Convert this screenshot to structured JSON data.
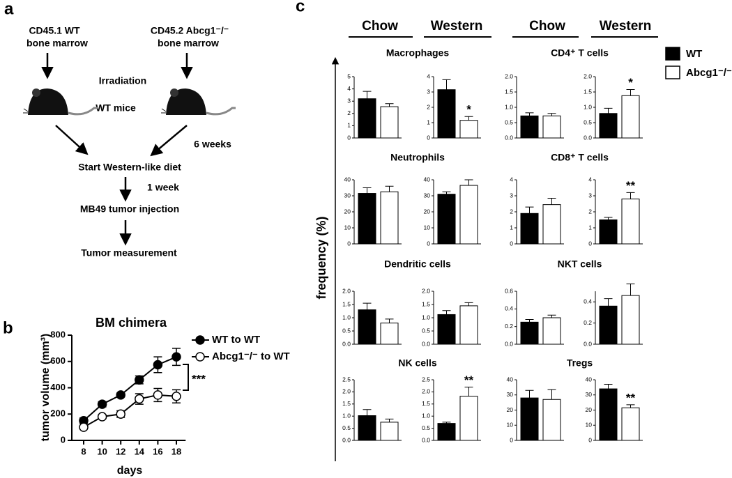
{
  "panel_labels": [
    "a",
    "b",
    "c"
  ],
  "diagram": {
    "sources": [
      [
        "CD45.1 WT",
        "bone marrow"
      ],
      [
        "CD45.2 Abcg1⁻/⁻",
        "bone marrow"
      ]
    ],
    "treatment": "Irradiation",
    "host": "WT mice",
    "delay1": "6 weeks",
    "step1": "Start Western-like diet",
    "delay2": "1 week",
    "step2": "MB49 tumor injection",
    "step3": "Tumor measurement"
  },
  "panel_c": {
    "headers": [
      "Chow",
      "Western",
      "Chow",
      "Western"
    ],
    "ylabel": "frequency (%)",
    "legend": [
      {
        "name": "WT",
        "color": "#000000"
      },
      {
        "name": "Abcg1⁻/⁻",
        "color": "#ffffff"
      }
    ]
  },
  "chart_data": [
    {
      "type": "line",
      "title": "BM chimera",
      "xlabel": "days",
      "ylabel": "tumor volume (mm³)",
      "x": [
        8,
        10,
        12,
        14,
        16,
        18
      ],
      "xlim": [
        7,
        19
      ],
      "xticks": [
        8,
        10,
        12,
        14,
        16,
        18
      ],
      "ylim": [
        0,
        800
      ],
      "yticks": [
        0,
        200,
        400,
        600,
        800
      ],
      "annotation": "***",
      "series": [
        {
          "name": "WT to WT",
          "color": "#000000",
          "values": [
            150,
            275,
            345,
            460,
            575,
            635
          ],
          "errors": [
            20,
            20,
            15,
            30,
            60,
            65
          ]
        },
        {
          "name": "Abcg1⁻/⁻ to WT",
          "color": "#ffffff",
          "values": [
            100,
            180,
            200,
            315,
            345,
            335
          ],
          "errors": [
            10,
            15,
            25,
            40,
            50,
            50
          ]
        }
      ]
    },
    {
      "type": "bar",
      "title": "Macrophages",
      "categories": [
        null,
        null
      ],
      "values": [
        3.2,
        2.55
      ],
      "errors": [
        0.6,
        0.25
      ],
      "annotations": [
        null,
        null
      ],
      "ylim": [
        0,
        5
      ],
      "yticks": [
        0,
        1,
        2,
        3,
        4,
        5
      ]
    },
    {
      "type": "bar",
      "categories": [
        null,
        null
      ],
      "values": [
        3.15,
        1.15
      ],
      "errors": [
        0.65,
        0.25
      ],
      "annotations": [
        null,
        "*"
      ],
      "ylim": [
        0,
        4
      ],
      "yticks": [
        0,
        1,
        2,
        3,
        4
      ]
    },
    {
      "type": "bar",
      "title": "CD4⁺ T cells",
      "categories": [
        null,
        null
      ],
      "values": [
        0.72,
        0.72
      ],
      "errors": [
        0.1,
        0.08
      ],
      "annotations": [
        null,
        null
      ],
      "ylim": [
        0,
        2
      ],
      "yticks": [
        {
          "value": 0,
          "label": "0.0"
        },
        0.5,
        {
          "value": 1,
          "label": "1.0"
        },
        1.5,
        {
          "value": 2,
          "label": "2.0"
        }
      ]
    },
    {
      "type": "bar",
      "categories": [
        null,
        null
      ],
      "values": [
        0.8,
        1.38
      ],
      "errors": [
        0.17,
        0.2
      ],
      "annotations": [
        null,
        "*"
      ],
      "ylim": [
        0,
        2
      ],
      "yticks": [
        {
          "value": 0,
          "label": "0.0"
        },
        0.5,
        {
          "value": 1,
          "label": "1.0"
        },
        1.5,
        {
          "value": 2,
          "label": "2.0"
        }
      ]
    },
    {
      "type": "bar",
      "title": "Neutrophils",
      "categories": [
        null,
        null
      ],
      "values": [
        31.5,
        32.5
      ],
      "errors": [
        3.5,
        3.5
      ],
      "annotations": [
        null,
        null
      ],
      "ylim": [
        0,
        40
      ],
      "yticks": [
        0,
        10,
        20,
        30,
        40
      ]
    },
    {
      "type": "bar",
      "categories": [
        null,
        null
      ],
      "values": [
        31,
        36.5
      ],
      "errors": [
        1.5,
        3.5
      ],
      "annotations": [
        null,
        null
      ],
      "ylim": [
        0,
        40
      ],
      "yticks": [
        0,
        10,
        20,
        30,
        40
      ]
    },
    {
      "type": "bar",
      "title": "CD8⁺ T cells",
      "categories": [
        null,
        null
      ],
      "values": [
        1.9,
        2.45
      ],
      "errors": [
        0.4,
        0.4
      ],
      "annotations": [
        null,
        null
      ],
      "ylim": [
        0,
        4
      ],
      "yticks": [
        0,
        1,
        2,
        3,
        4
      ]
    },
    {
      "type": "bar",
      "categories": [
        null,
        null
      ],
      "values": [
        1.5,
        2.8
      ],
      "errors": [
        0.15,
        0.4
      ],
      "annotations": [
        null,
        "**"
      ],
      "ylim": [
        0,
        4
      ],
      "yticks": [
        0,
        1,
        2,
        3,
        4
      ]
    },
    {
      "type": "bar",
      "title": "Dendritic cells",
      "categories": [
        null,
        null
      ],
      "values": [
        1.3,
        0.8
      ],
      "errors": [
        0.25,
        0.15
      ],
      "annotations": [
        null,
        null
      ],
      "ylim": [
        0,
        2
      ],
      "yticks": [
        {
          "value": 0,
          "label": "0.0"
        },
        0.5,
        {
          "value": 1,
          "label": "1.0"
        },
        1.5,
        {
          "value": 2,
          "label": "2.0"
        }
      ]
    },
    {
      "type": "bar",
      "categories": [
        null,
        null
      ],
      "values": [
        1.12,
        1.45
      ],
      "errors": [
        0.15,
        0.12
      ],
      "annotations": [
        null,
        null
      ],
      "ylim": [
        0,
        2
      ],
      "yticks": [
        {
          "value": 0,
          "label": "0.0"
        },
        0.5,
        {
          "value": 1,
          "label": "1.0"
        },
        1.5,
        {
          "value": 2,
          "label": "2.0"
        }
      ]
    },
    {
      "type": "bar",
      "title": "NKT cells",
      "categories": [
        null,
        null
      ],
      "values": [
        0.25,
        0.3
      ],
      "errors": [
        0.03,
        0.03
      ],
      "annotations": [
        null,
        null
      ],
      "ylim": [
        0,
        0.6
      ],
      "yticks": [
        {
          "value": 0,
          "label": "0.0"
        },
        0.2,
        0.4,
        0.6
      ]
    },
    {
      "type": "bar",
      "categories": [
        null,
        null
      ],
      "values": [
        0.36,
        0.46
      ],
      "errors": [
        0.07,
        0.11
      ],
      "annotations": [
        null,
        null
      ],
      "ylim": [
        0,
        0.5
      ],
      "yticks": [
        {
          "value": 0,
          "label": "0.0"
        },
        0.2,
        0.4
      ]
    },
    {
      "type": "bar",
      "title": "NK cells",
      "categories": [
        null,
        null
      ],
      "values": [
        1.02,
        0.75
      ],
      "errors": [
        0.25,
        0.13
      ],
      "annotations": [
        null,
        null
      ],
      "ylim": [
        0,
        2.5
      ],
      "yticks": [
        {
          "value": 0,
          "label": "0.0"
        },
        0.5,
        {
          "value": 1,
          "label": "1.0"
        },
        1.5,
        {
          "value": 2,
          "label": "2.0"
        },
        2.5
      ]
    },
    {
      "type": "bar",
      "categories": [
        null,
        null
      ],
      "values": [
        0.7,
        1.82
      ],
      "errors": [
        0.05,
        0.38
      ],
      "annotations": [
        null,
        "**"
      ],
      "ylim": [
        0,
        2.5
      ],
      "yticks": [
        {
          "value": 0,
          "label": "0.0"
        },
        0.5,
        {
          "value": 1,
          "label": "1.0"
        },
        1.5,
        {
          "value": 2,
          "label": "2.0"
        },
        2.5
      ]
    },
    {
      "type": "bar",
      "title": "Tregs",
      "categories": [
        null,
        null
      ],
      "values": [
        28,
        27
      ],
      "errors": [
        5,
        6.5
      ],
      "annotations": [
        null,
        null
      ],
      "ylim": [
        0,
        40
      ],
      "yticks": [
        0,
        10,
        20,
        30,
        40
      ]
    },
    {
      "type": "bar",
      "categories": [
        null,
        null
      ],
      "values": [
        34,
        21.5
      ],
      "errors": [
        3,
        2
      ],
      "annotations": [
        null,
        "**"
      ],
      "ylim": [
        0,
        40
      ],
      "yticks": [
        0,
        10,
        20,
        30,
        40
      ]
    }
  ]
}
